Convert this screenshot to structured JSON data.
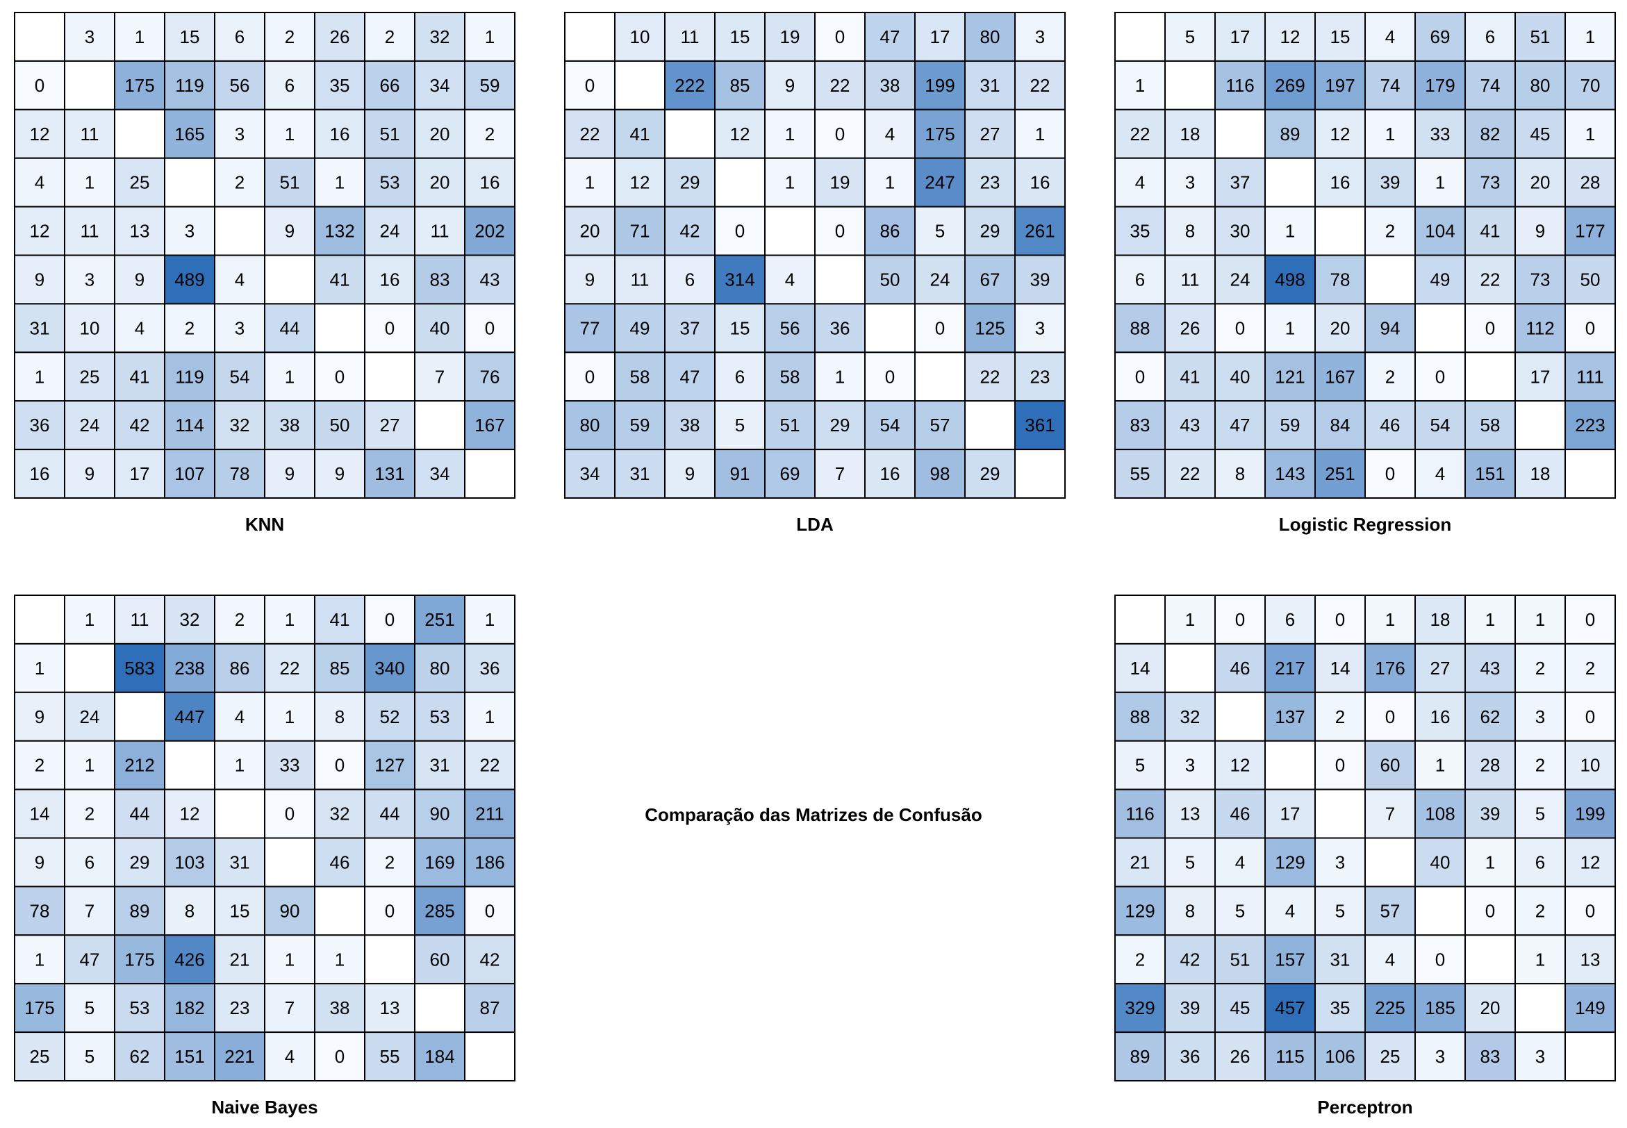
{
  "title": "Comparação das Matrizes de Confusão",
  "colors": {
    "low": "#f7fbff",
    "high": "#2f6fba",
    "grid_line": "#000000",
    "text": "#000000"
  },
  "chart_data": [
    {
      "type": "heatmap",
      "title": "KNN",
      "diagonal": "blank",
      "rows": [
        [
          null,
          3,
          1,
          15,
          6,
          2,
          26,
          2,
          32,
          1
        ],
        [
          0,
          null,
          175,
          119,
          56,
          6,
          35,
          66,
          34,
          59
        ],
        [
          12,
          11,
          null,
          165,
          3,
          1,
          16,
          51,
          20,
          2
        ],
        [
          4,
          1,
          25,
          null,
          2,
          51,
          1,
          53,
          20,
          16
        ],
        [
          12,
          11,
          13,
          3,
          null,
          9,
          132,
          24,
          11,
          202
        ],
        [
          9,
          3,
          9,
          489,
          4,
          null,
          41,
          16,
          83,
          43
        ],
        [
          31,
          10,
          4,
          2,
          3,
          44,
          null,
          0,
          40,
          0
        ],
        [
          1,
          25,
          41,
          119,
          54,
          1,
          0,
          null,
          7,
          76
        ],
        [
          36,
          24,
          42,
          114,
          32,
          38,
          50,
          27,
          null,
          167
        ],
        [
          16,
          9,
          17,
          107,
          78,
          9,
          9,
          131,
          34,
          null
        ]
      ]
    },
    {
      "type": "heatmap",
      "title": "LDA",
      "diagonal": "blank",
      "rows": [
        [
          null,
          10,
          11,
          15,
          19,
          0,
          47,
          17,
          80,
          3
        ],
        [
          0,
          null,
          222,
          85,
          9,
          22,
          38,
          199,
          31,
          22
        ],
        [
          22,
          41,
          null,
          12,
          1,
          0,
          4,
          175,
          27,
          1
        ],
        [
          1,
          12,
          29,
          null,
          1,
          19,
          1,
          247,
          23,
          16
        ],
        [
          20,
          71,
          42,
          0,
          null,
          0,
          86,
          5,
          29,
          261
        ],
        [
          9,
          11,
          6,
          314,
          4,
          null,
          50,
          24,
          67,
          39
        ],
        [
          77,
          49,
          37,
          15,
          56,
          36,
          null,
          0,
          125,
          3
        ],
        [
          0,
          58,
          47,
          6,
          58,
          1,
          0,
          null,
          22,
          23
        ],
        [
          80,
          59,
          38,
          5,
          51,
          29,
          54,
          57,
          null,
          361
        ],
        [
          34,
          31,
          9,
          91,
          69,
          7,
          16,
          98,
          29,
          null
        ]
      ]
    },
    {
      "type": "heatmap",
      "title": "Logistic Regression",
      "diagonal": "blank",
      "rows": [
        [
          null,
          5,
          17,
          12,
          15,
          4,
          69,
          6,
          51,
          1
        ],
        [
          1,
          null,
          116,
          269,
          197,
          74,
          179,
          74,
          80,
          70
        ],
        [
          22,
          18,
          null,
          89,
          12,
          1,
          33,
          82,
          45,
          1
        ],
        [
          4,
          3,
          37,
          null,
          16,
          39,
          1,
          73,
          20,
          28
        ],
        [
          35,
          8,
          30,
          1,
          null,
          2,
          104,
          41,
          9,
          177
        ],
        [
          6,
          11,
          24,
          498,
          78,
          null,
          49,
          22,
          73,
          50
        ],
        [
          88,
          26,
          0,
          1,
          20,
          94,
          null,
          0,
          112,
          0
        ],
        [
          0,
          41,
          40,
          121,
          167,
          2,
          0,
          null,
          17,
          111
        ],
        [
          83,
          43,
          47,
          59,
          84,
          46,
          54,
          58,
          null,
          223
        ],
        [
          55,
          22,
          8,
          143,
          251,
          0,
          4,
          151,
          18,
          null
        ]
      ]
    },
    {
      "type": "heatmap",
      "title": "Naive Bayes",
      "diagonal": "blank",
      "rows": [
        [
          null,
          1,
          11,
          32,
          2,
          1,
          41,
          0,
          251,
          1
        ],
        [
          1,
          null,
          583,
          238,
          86,
          22,
          85,
          340,
          80,
          36
        ],
        [
          9,
          24,
          null,
          447,
          4,
          1,
          8,
          52,
          53,
          1
        ],
        [
          2,
          1,
          212,
          null,
          1,
          33,
          0,
          127,
          31,
          22
        ],
        [
          14,
          2,
          44,
          12,
          null,
          0,
          32,
          44,
          90,
          211
        ],
        [
          9,
          6,
          29,
          103,
          31,
          null,
          46,
          2,
          169,
          186
        ],
        [
          78,
          7,
          89,
          8,
          15,
          90,
          null,
          0,
          285,
          0
        ],
        [
          1,
          47,
          175,
          426,
          21,
          1,
          1,
          null,
          60,
          42
        ],
        [
          175,
          5,
          53,
          182,
          23,
          7,
          38,
          13,
          null,
          87
        ],
        [
          25,
          5,
          62,
          151,
          221,
          4,
          0,
          55,
          184,
          null
        ]
      ]
    },
    {
      "type": "heatmap",
      "title": "Perceptron",
      "diagonal": "blank",
      "rows": [
        [
          null,
          1,
          0,
          6,
          0,
          1,
          18,
          1,
          1,
          0
        ],
        [
          14,
          null,
          46,
          217,
          14,
          176,
          27,
          43,
          2,
          2
        ],
        [
          88,
          32,
          null,
          137,
          2,
          0,
          16,
          62,
          3,
          0
        ],
        [
          5,
          3,
          12,
          null,
          0,
          60,
          1,
          28,
          2,
          10
        ],
        [
          116,
          13,
          46,
          17,
          null,
          7,
          108,
          39,
          5,
          199
        ],
        [
          21,
          5,
          4,
          129,
          3,
          null,
          40,
          1,
          6,
          12
        ],
        [
          129,
          8,
          5,
          4,
          5,
          57,
          null,
          0,
          2,
          0
        ],
        [
          2,
          42,
          51,
          157,
          31,
          4,
          0,
          null,
          1,
          13
        ],
        [
          329,
          39,
          45,
          457,
          35,
          225,
          185,
          20,
          null,
          149
        ],
        [
          89,
          36,
          26,
          115,
          106,
          25,
          3,
          83,
          3,
          null
        ]
      ]
    }
  ]
}
